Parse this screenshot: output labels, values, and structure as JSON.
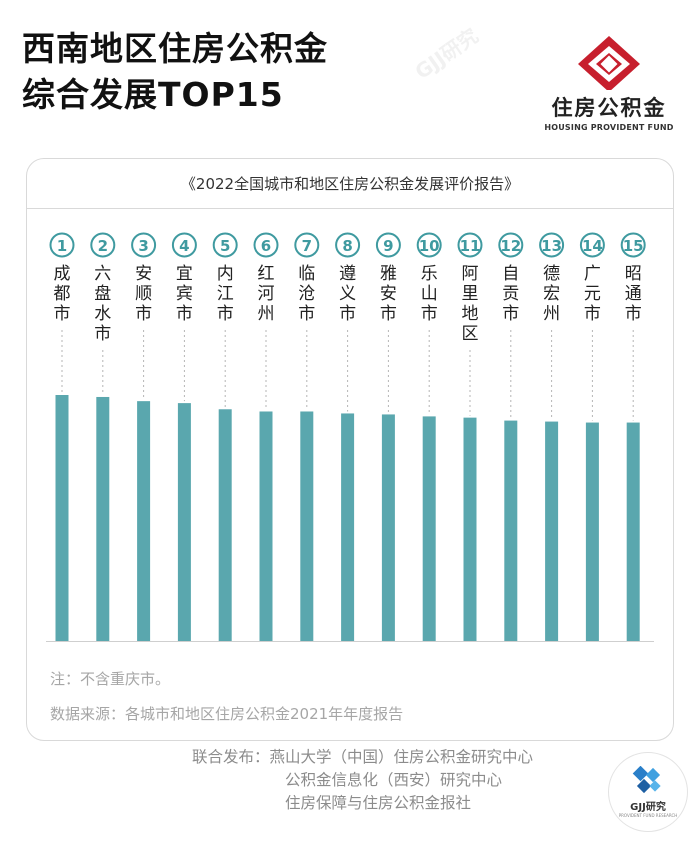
{
  "title_line1": "西南地区住房公积金",
  "title_line2": "综合发展TOP15",
  "logo": {
    "name": "住房公积金",
    "english": "HOUSING PROVIDENT FUND",
    "icon": "housing-fund-logo-icon"
  },
  "report_title": "《2022全国城市和地区住房公积金发展评价报告》",
  "chart_data": {
    "type": "bar",
    "categories": [
      "成都市",
      "六盘水市",
      "安顺市",
      "宜宾市",
      "内江市",
      "红河州",
      "临沧市",
      "遵义市",
      "雅安市",
      "乐山市",
      "阿里地区",
      "自贡市",
      "德宏州",
      "广元市",
      "昭通市"
    ],
    "ranks": [
      "①",
      "②",
      "③",
      "④",
      "⑤",
      "⑥",
      "⑦",
      "⑧",
      "⑨",
      "⑩",
      "⑪",
      "⑫",
      "⑬",
      "⑭",
      "⑮"
    ],
    "values": [
      100,
      99.2,
      97.5,
      96.7,
      94.2,
      93.3,
      93.3,
      92.5,
      92.1,
      91.3,
      90.8,
      89.6,
      89.2,
      88.8,
      88.8
    ],
    "ylim": [
      0,
      100
    ],
    "bar_color": "#5aa7ae",
    "rank_color": "#3f9aa0"
  },
  "notes": {
    "note": "注：不含重庆市。",
    "source": "数据来源：各城市和地区住房公积金2021年年度报告"
  },
  "publishers": {
    "label": "联合发布：",
    "lines": [
      "燕山大学（中国）住房公积金研究中心",
      "公积金信息化（西安）研究中心",
      "住房保障与住房公积金报社"
    ]
  },
  "badge": {
    "title": "GJJ研究",
    "subtitle": "PROVIDENT FUND RESEARCH",
    "icon": "gjj-research-logo-icon"
  },
  "watermark": "GJJ研究"
}
